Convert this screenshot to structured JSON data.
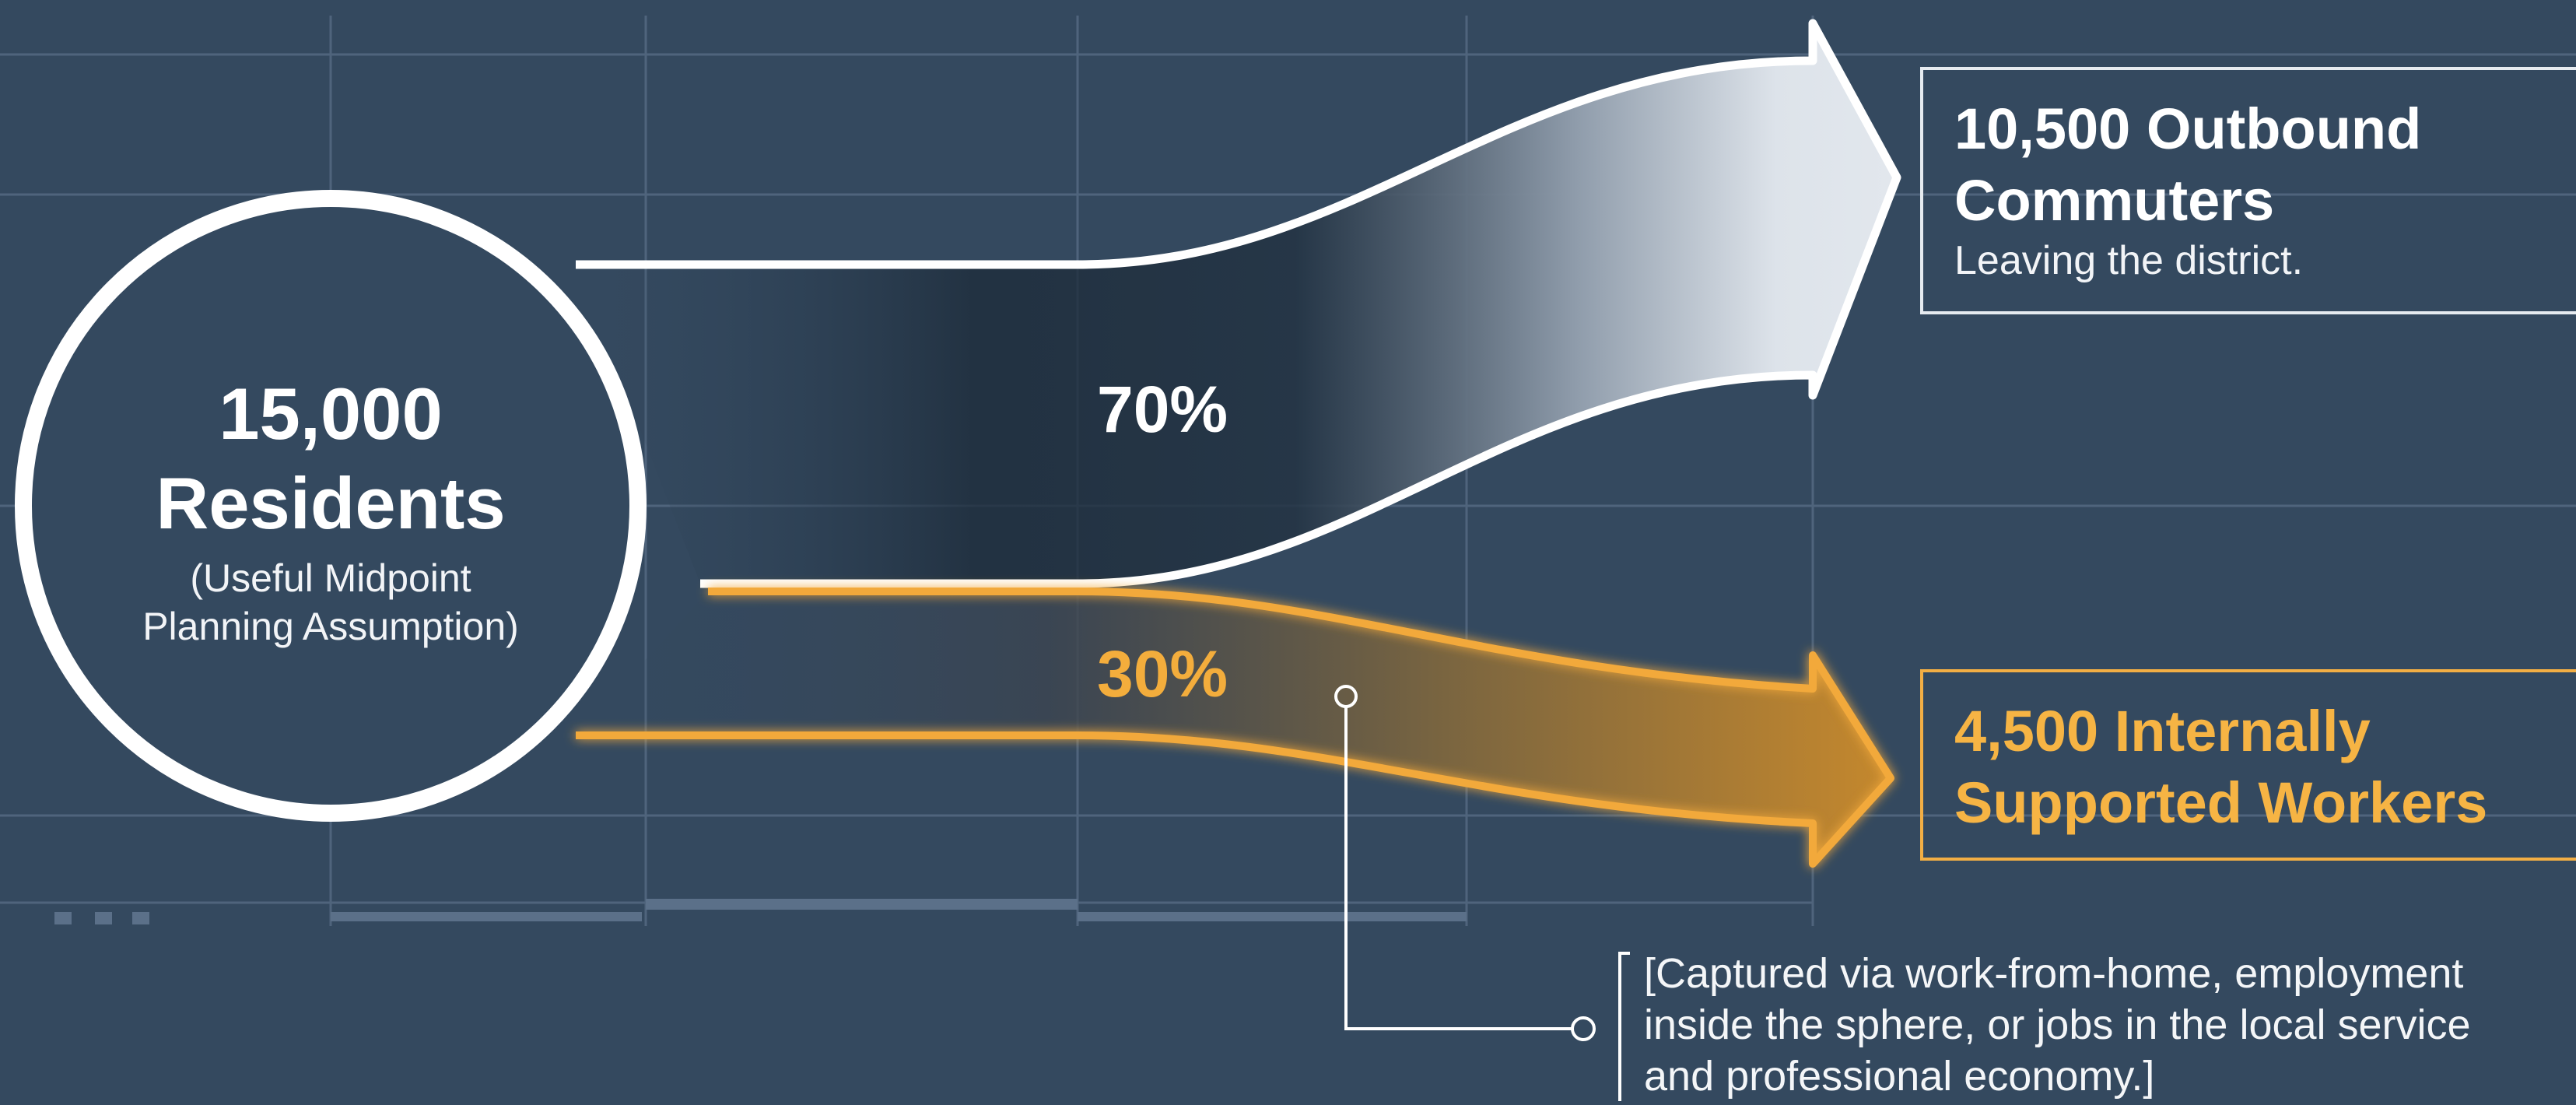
{
  "source": {
    "count": "15,000",
    "label": "Residents",
    "note_line1": "(Useful Midpoint",
    "note_line2": "Planning Assumption)"
  },
  "flows": [
    {
      "name": "outbound",
      "percent_label": "70%",
      "share": 70,
      "color": "#ffffff"
    },
    {
      "name": "internal",
      "percent_label": "30%",
      "share": 30,
      "color": "#f2a93b"
    }
  ],
  "outbound_box": {
    "title_line1": "10,500 Outbound",
    "title_line2": "Commuters",
    "subtitle": "Leaving the district."
  },
  "internal_box": {
    "title_line1": "4,500 Internally",
    "title_line2": "Supported Workers"
  },
  "annotation": {
    "line1": "[Captured via work-from-home, employment",
    "line2": "inside the sphere, or jobs in the local service",
    "line3": "and professional economy.]"
  },
  "colors": {
    "background": "#34495f",
    "grid": "#5b7089",
    "outbound": "#ffffff",
    "internal": "#f2a93b"
  }
}
